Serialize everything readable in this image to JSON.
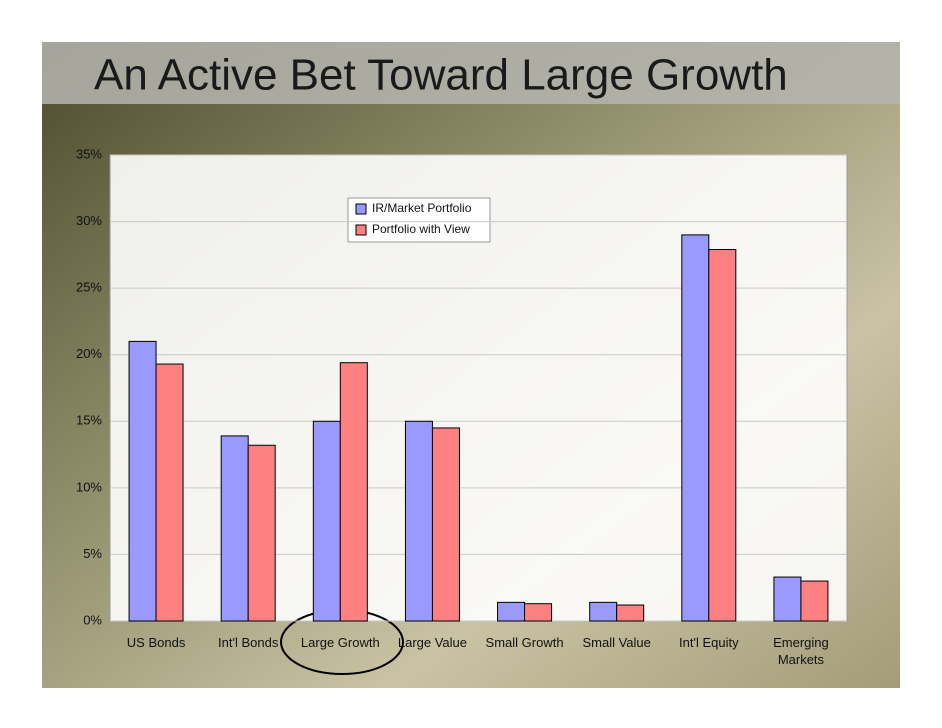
{
  "chart_data": {
    "type": "bar",
    "title": "An Active Bet Toward Large Growth",
    "categories": [
      "US Bonds",
      "Int'l Bonds",
      "Large Growth",
      "Large Value",
      "Small Growth",
      "Small Value",
      "Int'l Equity",
      "Emerging Markets"
    ],
    "series": [
      {
        "name": "IR/Market Portfolio",
        "color": "#9999ff",
        "values": [
          21.0,
          13.9,
          15.0,
          15.0,
          1.4,
          1.4,
          29.0,
          3.3
        ]
      },
      {
        "name": "Portfolio with View",
        "color": "#ff8080",
        "values": [
          19.3,
          13.2,
          19.4,
          14.5,
          1.3,
          1.2,
          27.9,
          3.0
        ]
      }
    ],
    "ylim": [
      0,
      35
    ],
    "yticks": [
      {
        "value": 0,
        "label": "0%"
      },
      {
        "value": 5,
        "label": "5%"
      },
      {
        "value": 10,
        "label": "10%"
      },
      {
        "value": 15,
        "label": "15%"
      },
      {
        "value": 20,
        "label": "20%"
      },
      {
        "value": 25,
        "label": "25%"
      },
      {
        "value": 30,
        "label": "30%"
      },
      {
        "value": 35,
        "label": "35%"
      }
    ],
    "grid": true
  }
}
